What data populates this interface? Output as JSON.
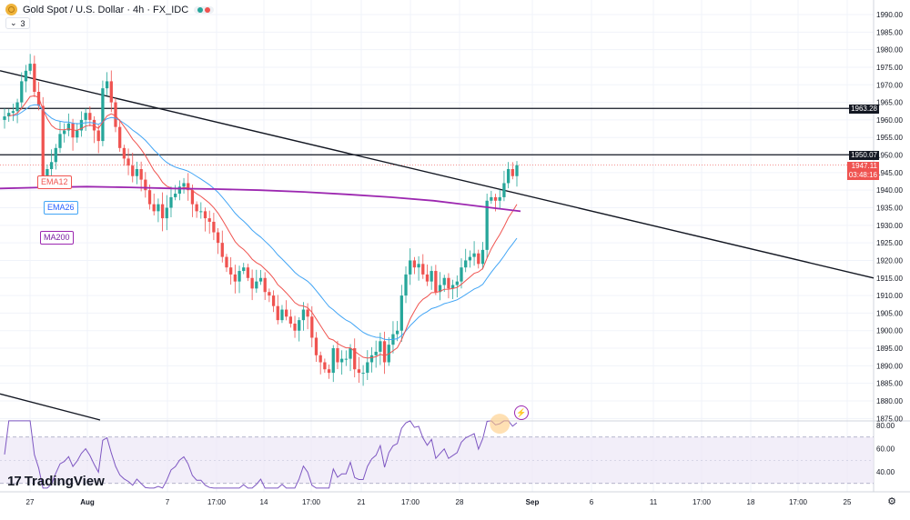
{
  "header": {
    "title": "Gold Spot / U.S. Dollar · 4h · FX_IDC",
    "collapse_count": "3"
  },
  "colors": {
    "up": "#26a69a",
    "down": "#ef5350",
    "ema12": "#f05450",
    "ema26": "#42a5f5",
    "ma200": "#9c27b0",
    "rsi": "#7e57c2",
    "grid": "#f0f3fa"
  },
  "indicators": {
    "ema12_label": "EMA12",
    "ema26_label": "EMA26",
    "ma200_label": "MA200"
  },
  "price_tags": {
    "level1": "1963.28",
    "level2": "1950.07",
    "last_price": "1947.11",
    "countdown": "03:48:16"
  },
  "logo": {
    "text": "TradingView",
    "mark": "17"
  },
  "chart_data": {
    "type": "candlestick",
    "title": "Gold Spot / U.S. Dollar · 4h · FX_IDC",
    "y_axis": {
      "ticks": [
        1990,
        1985,
        1980,
        1975,
        1970,
        1965,
        1960,
        1955,
        1950,
        1945,
        1940,
        1935,
        1930,
        1925,
        1920,
        1915,
        1910,
        1905,
        1900,
        1895,
        1890,
        1885,
        1880,
        1875
      ],
      "tick_labels": [
        "1990.00",
        "1985.00",
        "1980.00",
        "1975.00",
        "1970.00",
        "1965.00",
        "1960.00",
        "1955.00",
        "1950.00",
        "1945.00",
        "1940.00",
        "1935.00",
        "1930.00",
        "1925.00",
        "1920.00",
        "1915.00",
        "1910.00",
        "1905.00",
        "1900.00",
        "1895.00",
        "1890.00",
        "1885.00",
        "1880.00",
        "1875.00"
      ],
      "ylim": [
        1875,
        1991
      ]
    },
    "x_axis": {
      "tick_labels": [
        "27",
        "Aug",
        "7",
        "17:00",
        "14",
        "17:00",
        "21",
        "17:00",
        "28",
        "Sep",
        "6",
        "11",
        "17:00",
        "18",
        "17:00",
        "25"
      ]
    },
    "horizontal_levels": [
      1963.28,
      1950.07
    ],
    "last_price": 1947.11,
    "trendline_prices": {
      "start": 1974.0,
      "end": 1915.0
    },
    "lower_channel_start": 1882.0,
    "close_path": [
      1961,
      1962,
      1962.5,
      1965,
      1971,
      1974,
      1976,
      1968,
      1964,
      1944,
      1946,
      1948,
      1952,
      1956,
      1957,
      1959,
      1955,
      1957,
      1960,
      1962,
      1960,
      1957,
      1954,
      1969,
      1971,
      1965,
      1958,
      1952,
      1949,
      1947,
      1944,
      1946,
      1943,
      1940,
      1936,
      1934,
      1936,
      1932,
      1935,
      1938,
      1939,
      1941,
      1942,
      1940,
      1936,
      1934,
      1934,
      1932,
      1931,
      1928,
      1925,
      1921,
      1918,
      1916,
      1914,
      1917,
      1918,
      1915,
      1912,
      1914,
      1915,
      1911,
      1910,
      1907,
      1903,
      1906,
      1904,
      1902,
      1900,
      1903,
      1906,
      1904,
      1898,
      1893,
      1891,
      1889,
      1888,
      1895,
      1891,
      1892,
      1892,
      1895,
      1889,
      1888,
      1888,
      1891,
      1893,
      1894,
      1897,
      1891,
      1896,
      1899,
      1900,
      1910,
      1916,
      1920,
      1918,
      1919,
      1916,
      1914,
      1917,
      1911,
      1913,
      1915,
      1912,
      1913,
      1914,
      1918,
      1920,
      1921,
      1922,
      1919,
      1923,
      1937,
      1938,
      1937,
      1938,
      1942,
      1946,
      1944,
      1947.11
    ],
    "ema12_last": 1939,
    "ema26_last": 1930,
    "ma200_path": [
      1940.5,
      1940.8,
      1941,
      1940.8,
      1940.5,
      1940.3,
      1940.0,
      1939.5,
      1938.8,
      1938.0,
      1937.0,
      1935.5,
      1934.0
    ],
    "rsi": {
      "ticks": [
        80,
        60,
        40
      ],
      "tick_labels": [
        "80.00",
        "60.00",
        "40.00"
      ],
      "levels": [
        70,
        30
      ],
      "midline": 50
    }
  }
}
